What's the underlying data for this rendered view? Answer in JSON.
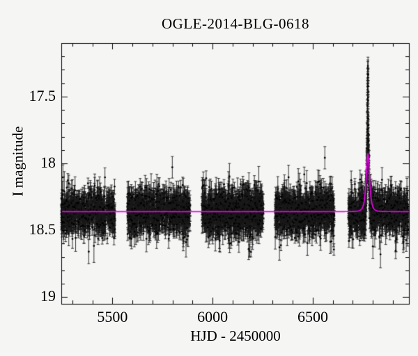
{
  "figure": {
    "background": "#f5f5f4"
  },
  "chart_data": {
    "type": "scatter",
    "title": "OGLE-2014-BLG-0618",
    "xlabel": "HJD - 2450000",
    "ylabel": "I magnitude",
    "xlim": [
      5245,
      6980
    ],
    "ylim": [
      19.05,
      17.1
    ],
    "y_axis_inverted_magnitude": true,
    "grid": false,
    "legend": null,
    "point_color": "#000000",
    "errorbar_color": "#1a1a1a",
    "model_color": "#ee00ee",
    "axis_color": "#000000",
    "x_ticks": {
      "major": [
        5500,
        6000,
        6500
      ],
      "labels": [
        "5500",
        "6000",
        "6500"
      ],
      "minor_step": 100
    },
    "y_ticks": {
      "major": [
        17.5,
        18.0,
        18.5,
        19.0
      ],
      "labels": [
        "17.5",
        "18",
        "18.5",
        "19"
      ],
      "minor_step": 0.1
    },
    "baseline_mag": 18.36,
    "scatter_sigma": 0.08,
    "seasons": [
      {
        "start": 5245,
        "end": 5513,
        "n": 620
      },
      {
        "start": 5575,
        "end": 5888,
        "n": 850
      },
      {
        "start": 5947,
        "end": 6253,
        "n": 950
      },
      {
        "start": 6312,
        "end": 6608,
        "n": 850
      },
      {
        "start": 6678,
        "end": 6978,
        "n": 850
      }
    ],
    "event": {
      "t0": 6775,
      "model_curve": {
        "u0": 0.84,
        "tE": 11,
        "peak_mag": 17.93,
        "baseline_mag": 18.36
      },
      "data_spike": {
        "u0": 0.395,
        "tE": 5,
        "peak_mag": 17.29,
        "t_span": 6.5,
        "t_step": 0.28
      }
    },
    "outliers": [
      {
        "x": 5382,
        "mag": 18.66,
        "err": 0.09
      },
      {
        "x": 6180,
        "mag": 18.64,
        "err": 0.08
      },
      {
        "x": 6800,
        "mag": 18.62,
        "err": 0.09
      },
      {
        "x": 6838,
        "mag": 18.68,
        "err": 0.1
      }
    ]
  }
}
